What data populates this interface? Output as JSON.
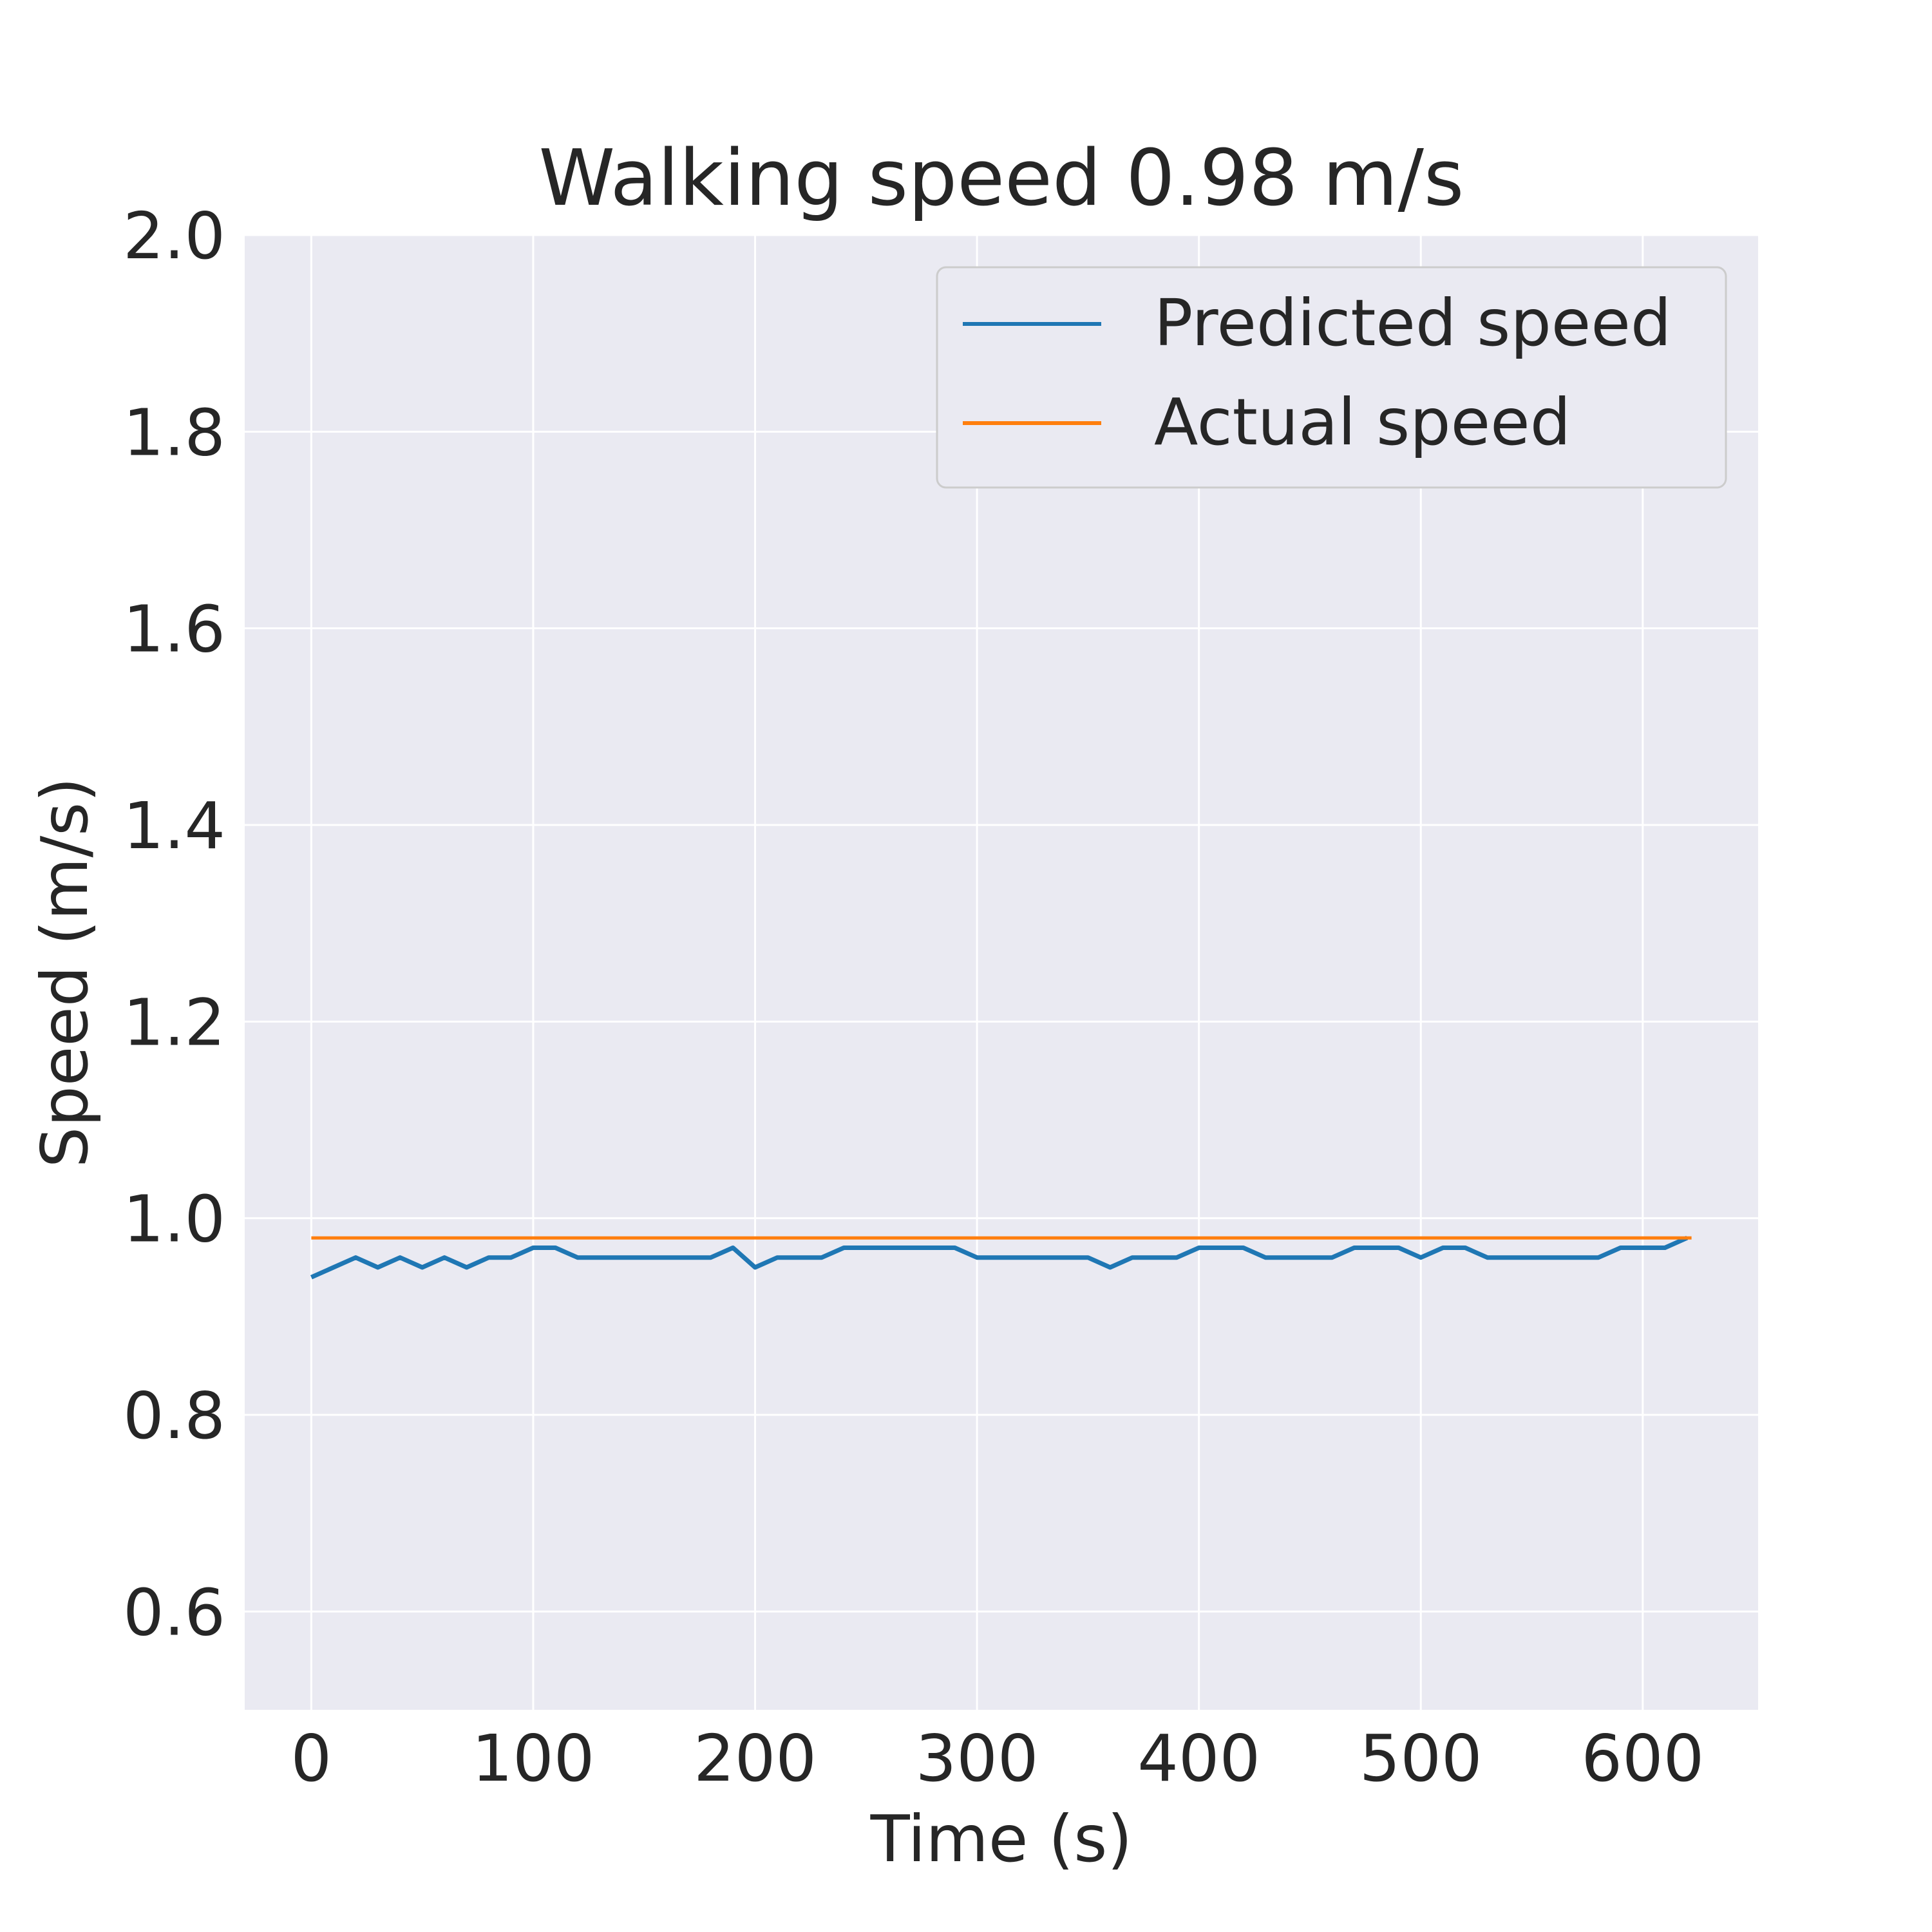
{
  "chart_data": {
    "type": "line",
    "title": "Walking speed 0.98 m/s",
    "xlabel": "Time (s)",
    "ylabel": "Speed (m/s)",
    "xlim": [
      -30,
      652
    ],
    "ylim": [
      0.5,
      2.0
    ],
    "xticks": [
      0,
      100,
      200,
      300,
      400,
      500,
      600
    ],
    "xtick_labels": [
      "0",
      "100",
      "200",
      "300",
      "400",
      "500",
      "600"
    ],
    "yticks": [
      0.6,
      0.8,
      1.0,
      1.2,
      1.4,
      1.6,
      1.8,
      2.0
    ],
    "ytick_labels": [
      "0.6",
      "0.8",
      "1.0",
      "1.2",
      "1.4",
      "1.6",
      "1.8",
      "2.0"
    ],
    "grid": true,
    "legend_position": "top-right",
    "series": [
      {
        "name": "Predicted speed",
        "color": "#1f77b4",
        "x": [
          0,
          10,
          20,
          30,
          40,
          50,
          60,
          70,
          80,
          90,
          100,
          110,
          120,
          130,
          140,
          150,
          160,
          170,
          180,
          190,
          200,
          210,
          220,
          230,
          240,
          250,
          260,
          270,
          280,
          290,
          300,
          310,
          320,
          330,
          340,
          350,
          360,
          370,
          380,
          390,
          400,
          410,
          420,
          430,
          440,
          450,
          460,
          470,
          480,
          490,
          500,
          510,
          520,
          530,
          540,
          550,
          560,
          570,
          580,
          590,
          600,
          610,
          620
        ],
        "y": [
          0.94,
          0.95,
          0.96,
          0.95,
          0.96,
          0.95,
          0.96,
          0.95,
          0.96,
          0.96,
          0.97,
          0.97,
          0.96,
          0.96,
          0.96,
          0.96,
          0.96,
          0.96,
          0.96,
          0.97,
          0.95,
          0.96,
          0.96,
          0.96,
          0.97,
          0.97,
          0.97,
          0.97,
          0.97,
          0.97,
          0.96,
          0.96,
          0.96,
          0.96,
          0.96,
          0.96,
          0.95,
          0.96,
          0.96,
          0.96,
          0.97,
          0.97,
          0.97,
          0.96,
          0.96,
          0.96,
          0.96,
          0.97,
          0.97,
          0.97,
          0.96,
          0.97,
          0.97,
          0.96,
          0.96,
          0.96,
          0.96,
          0.96,
          0.96,
          0.97,
          0.97,
          0.97,
          0.98
        ]
      },
      {
        "name": "Actual speed",
        "color": "#ff7f0e",
        "x": [
          0,
          622
        ],
        "y": [
          0.98,
          0.98
        ]
      }
    ]
  }
}
